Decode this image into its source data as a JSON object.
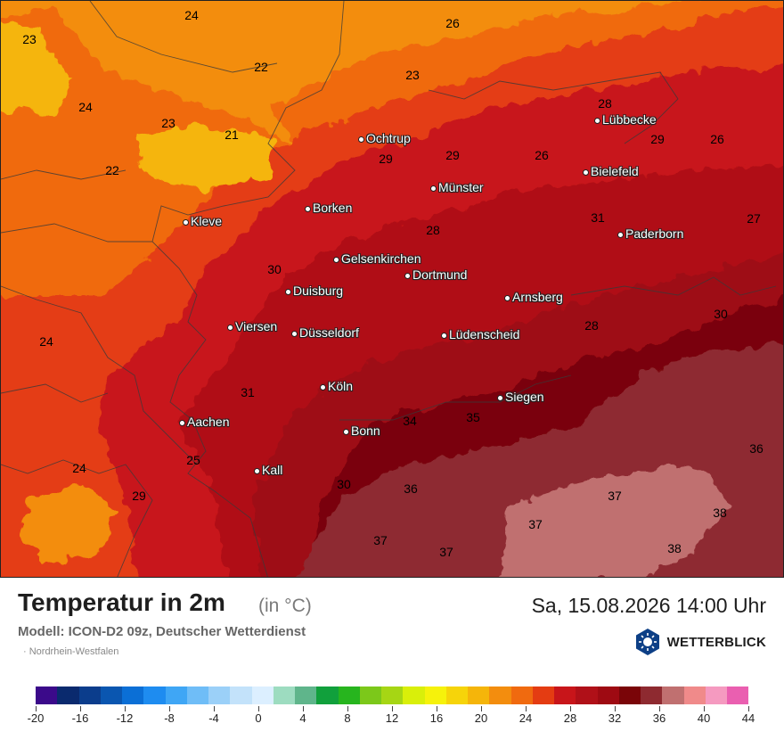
{
  "map": {
    "temperature_labels": [
      {
        "v": "24"
      },
      {
        "v": "23"
      },
      {
        "v": "26"
      },
      {
        "v": "22"
      },
      {
        "v": "23"
      },
      {
        "v": "24"
      },
      {
        "v": "23"
      },
      {
        "v": "21"
      },
      {
        "v": "22"
      },
      {
        "v": "28"
      },
      {
        "v": "29"
      },
      {
        "v": "26"
      },
      {
        "v": "29"
      },
      {
        "v": "29"
      },
      {
        "v": "26"
      },
      {
        "v": "31"
      },
      {
        "v": "27"
      },
      {
        "v": "28"
      },
      {
        "v": "30"
      },
      {
        "v": "24"
      },
      {
        "v": "28"
      },
      {
        "v": "30"
      },
      {
        "v": "31"
      },
      {
        "v": "34"
      },
      {
        "v": "35"
      },
      {
        "v": "36"
      },
      {
        "v": "25"
      },
      {
        "v": "24"
      },
      {
        "v": "29"
      },
      {
        "v": "30"
      },
      {
        "v": "36"
      },
      {
        "v": "37"
      },
      {
        "v": "38"
      },
      {
        "v": "37"
      },
      {
        "v": "37"
      },
      {
        "v": "37"
      },
      {
        "v": "38"
      }
    ],
    "cities": [
      {
        "name": "Ochtrup"
      },
      {
        "name": "Lübbecke"
      },
      {
        "name": "Bielefeld"
      },
      {
        "name": "Münster"
      },
      {
        "name": "Borken"
      },
      {
        "name": "Kleve"
      },
      {
        "name": "Paderborn"
      },
      {
        "name": "Gelsenkirchen"
      },
      {
        "name": "Dortmund"
      },
      {
        "name": "Duisburg"
      },
      {
        "name": "Arnsberg"
      },
      {
        "name": "Viersen"
      },
      {
        "name": "Düsseldorf"
      },
      {
        "name": "Lüdenscheid"
      },
      {
        "name": "Köln"
      },
      {
        "name": "Siegen"
      },
      {
        "name": "Aachen"
      },
      {
        "name": "Bonn"
      },
      {
        "name": "Kall"
      }
    ]
  },
  "footer": {
    "title": "Temperatur in 2m",
    "unit": "(in °C)",
    "datetime": "Sa, 15.08.2026 14:00 Uhr",
    "model": "Modell: ICON-D2 09z, Deutscher Wetterdienst",
    "region": "· Nordrhein-Westfalen",
    "brand": "WETTERBLICK"
  },
  "colorscale": {
    "colors": [
      "#3b0a8a",
      "#0a2a6e",
      "#0b3d8c",
      "#0a56b0",
      "#0b6fd6",
      "#1e8cf0",
      "#3fa6f5",
      "#6fbdf7",
      "#9bd0f8",
      "#c3e2fa",
      "#dcefff",
      "#9ddcc0",
      "#5fb58b",
      "#11a03c",
      "#27b51e",
      "#7cc81a",
      "#a6d614",
      "#d9ef0a",
      "#f6f20b",
      "#f6d40a",
      "#f5b50a",
      "#f38d0e",
      "#f06a0f",
      "#e43c12",
      "#c8151a",
      "#b01018",
      "#9e0a12",
      "#7a0508",
      "#8e2a30",
      "#c07070",
      "#f08a8a",
      "#f59ac0",
      "#ea5fb0"
    ],
    "tick_labels": [
      "-20",
      "-16",
      "-12",
      "-8",
      "-4",
      "0",
      "4",
      "8",
      "12",
      "16",
      "20",
      "24",
      "28",
      "32",
      "36",
      "40",
      "44"
    ]
  }
}
